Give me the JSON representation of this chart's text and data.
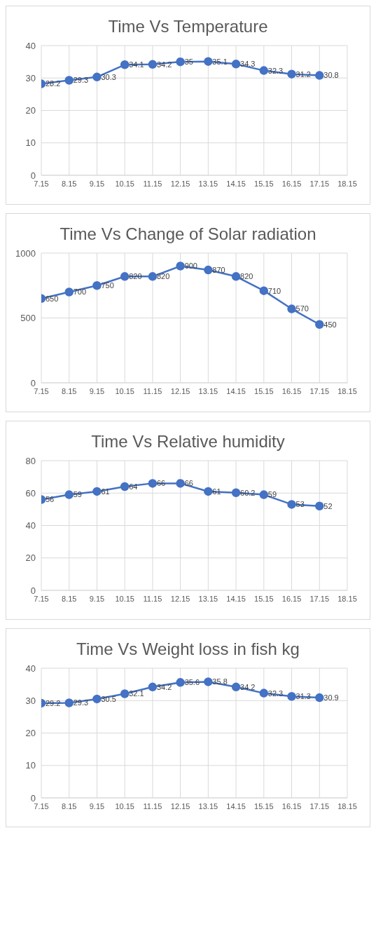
{
  "chart_data": [
    {
      "type": "line",
      "title": "Time Vs Temperature",
      "x": [
        7.15,
        8.15,
        9.15,
        10.15,
        11.15,
        12.15,
        13.15,
        14.15,
        15.15,
        16.15,
        17.15
      ],
      "values": [
        28.2,
        29.3,
        30.3,
        34.1,
        34.2,
        35,
        35.1,
        34.3,
        32.3,
        31.2,
        30.8
      ],
      "color": "#4472c4",
      "xlim": [
        7.15,
        18.15
      ],
      "xticks": [
        7.15,
        8.15,
        9.15,
        10.15,
        11.15,
        12.15,
        13.15,
        14.15,
        15.15,
        16.15,
        17.15,
        18.15
      ],
      "ylim": [
        0,
        40
      ],
      "yticks": [
        0,
        10,
        20,
        30,
        40
      ],
      "grid": true,
      "marker": "circle",
      "data_labels": true
    },
    {
      "type": "line",
      "title": "Time Vs Change of Solar radiation",
      "x": [
        7.15,
        8.15,
        9.15,
        10.15,
        11.15,
        12.15,
        13.15,
        14.15,
        15.15,
        16.15,
        17.15
      ],
      "values": [
        650,
        700,
        750,
        820,
        820,
        900,
        870,
        820,
        710,
        570,
        450
      ],
      "color": "#4472c4",
      "xlim": [
        7.15,
        18.15
      ],
      "xticks": [
        7.15,
        8.15,
        9.15,
        10.15,
        11.15,
        12.15,
        13.15,
        14.15,
        15.15,
        16.15,
        17.15,
        18.15
      ],
      "ylim": [
        0,
        1000
      ],
      "yticks": [
        0,
        500,
        1000
      ],
      "grid": true,
      "marker": "circle",
      "data_labels": true
    },
    {
      "type": "line",
      "title": "Time Vs Relative humidity",
      "x": [
        7.15,
        8.15,
        9.15,
        10.15,
        11.15,
        12.15,
        13.15,
        14.15,
        15.15,
        16.15,
        17.15
      ],
      "values": [
        56,
        59,
        61,
        64,
        66,
        66,
        61,
        60.2,
        59,
        53,
        52
      ],
      "color": "#4472c4",
      "xlim": [
        7.15,
        18.15
      ],
      "xticks": [
        7.15,
        8.15,
        9.15,
        10.15,
        11.15,
        12.15,
        13.15,
        14.15,
        15.15,
        16.15,
        17.15,
        18.15
      ],
      "ylim": [
        0,
        80
      ],
      "yticks": [
        0,
        20,
        40,
        60,
        80
      ],
      "grid": true,
      "marker": "circle",
      "data_labels": true
    },
    {
      "type": "line",
      "title": "Time Vs Weight loss in fish kg",
      "x": [
        7.15,
        8.15,
        9.15,
        10.15,
        11.15,
        12.15,
        13.15,
        14.15,
        15.15,
        16.15,
        17.15
      ],
      "values": [
        29.2,
        29.3,
        30.5,
        32.1,
        34.2,
        35.6,
        35.8,
        34.2,
        32.3,
        31.3,
        30.9
      ],
      "color": "#4472c4",
      "xlim": [
        7.15,
        18.15
      ],
      "xticks": [
        7.15,
        8.15,
        9.15,
        10.15,
        11.15,
        12.15,
        13.15,
        14.15,
        15.15,
        16.15,
        17.15,
        18.15
      ],
      "ylim": [
        0,
        40
      ],
      "yticks": [
        0,
        10,
        20,
        30,
        40
      ],
      "grid": true,
      "marker": "circle",
      "data_labels": true
    }
  ]
}
